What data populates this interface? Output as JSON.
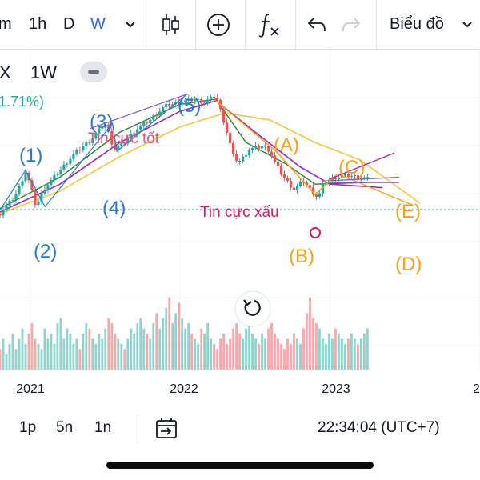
{
  "toolbar": {
    "interval_partial": "m",
    "interval_1h": "1h",
    "interval_d": "D",
    "interval_w": "W",
    "chart_label": "Biểu đồ",
    "icons": [
      "chevron-down-icon",
      "candlestick-icon",
      "add-circle-icon",
      "fx-icon",
      "undo-icon",
      "redo-icon"
    ]
  },
  "legend": {
    "symbol_fragment": "X",
    "timeframe": "1W",
    "change_fragment": "1.71%)"
  },
  "colors": {
    "up": "#26a69a",
    "down": "#ef5350",
    "wave_blue": "#2e78c4",
    "wave_orange": "#f6a21e",
    "annotation_pink": "#d81b60",
    "ma_yellow": "#f5c542",
    "ma_purple": "#9c27b0",
    "ma_green": "#2e7d32"
  },
  "chart_data": {
    "type": "candlestick",
    "annotations": {
      "wave_1": "(1)",
      "wave_2": "(2)",
      "wave_3": "(3)",
      "wave_4": "(4)",
      "wave_5": "(5)",
      "wave_A": "(A)",
      "wave_B": "(B)",
      "wave_C": "(C)",
      "wave_D": "(D)",
      "wave_E": "(E)",
      "good_news": "Tin cực tốt",
      "bad_news": "Tin cực xấu"
    },
    "x_ticks": [
      "2021",
      "2022",
      "2023",
      "2"
    ],
    "x_range": [
      2020.8,
      2024.0
    ],
    "y_range": [
      0,
      100
    ],
    "price_series": [
      [
        2020.8,
        23
      ],
      [
        2020.9,
        33
      ],
      [
        2020.97,
        47
      ],
      [
        2021.0,
        40
      ],
      [
        2021.04,
        27
      ],
      [
        2021.06,
        31
      ],
      [
        2021.1,
        38
      ],
      [
        2021.16,
        44
      ],
      [
        2021.24,
        52
      ],
      [
        2021.3,
        58
      ],
      [
        2021.4,
        65
      ],
      [
        2021.5,
        75
      ],
      [
        2021.52,
        71
      ],
      [
        2021.56,
        60
      ],
      [
        2021.62,
        63
      ],
      [
        2021.7,
        71
      ],
      [
        2021.8,
        77
      ],
      [
        2021.9,
        85
      ],
      [
        2022.0,
        87
      ],
      [
        2022.1,
        89
      ],
      [
        2022.16,
        87
      ],
      [
        2022.24,
        91
      ],
      [
        2022.3,
        74
      ],
      [
        2022.36,
        55
      ],
      [
        2022.4,
        53
      ],
      [
        2022.46,
        60
      ],
      [
        2022.56,
        62
      ],
      [
        2022.6,
        59
      ],
      [
        2022.64,
        51
      ],
      [
        2022.7,
        43
      ],
      [
        2022.76,
        37
      ],
      [
        2022.82,
        42
      ],
      [
        2022.88,
        36
      ],
      [
        2022.92,
        32
      ],
      [
        2022.96,
        41
      ],
      [
        2023.04,
        44
      ],
      [
        2023.12,
        45
      ],
      [
        2023.2,
        44
      ],
      [
        2023.25,
        43
      ]
    ],
    "ma_yellow": [
      [
        2020.8,
        23
      ],
      [
        2021.2,
        36
      ],
      [
        2021.6,
        56
      ],
      [
        2022.0,
        73
      ],
      [
        2022.3,
        81
      ],
      [
        2022.6,
        77
      ],
      [
        2022.9,
        64
      ],
      [
        2023.2,
        54
      ],
      [
        2023.6,
        29
      ]
    ],
    "ma_purple": [
      [
        2020.8,
        24
      ],
      [
        2021.2,
        40
      ],
      [
        2021.6,
        64
      ],
      [
        2022.0,
        82
      ],
      [
        2022.24,
        88
      ],
      [
        2022.5,
        70
      ],
      [
        2022.8,
        50
      ],
      [
        2023.0,
        40
      ],
      [
        2023.35,
        38
      ]
    ],
    "ma_green": [
      [
        2020.8,
        26
      ],
      [
        2021.2,
        44
      ],
      [
        2021.6,
        70
      ],
      [
        2022.0,
        86
      ],
      [
        2022.24,
        89
      ],
      [
        2022.44,
        64
      ],
      [
        2022.7,
        52
      ],
      [
        2022.9,
        40
      ],
      [
        2023.25,
        41
      ]
    ],
    "volume": [
      4,
      6,
      3,
      5,
      7,
      4,
      6,
      8,
      5,
      7,
      9,
      6,
      5,
      4,
      8,
      6,
      7,
      5,
      9,
      10,
      6,
      8,
      7,
      5,
      6,
      4,
      7,
      9,
      8,
      6,
      5,
      7,
      6,
      8,
      10,
      9,
      7,
      6,
      5,
      4,
      6,
      8,
      7,
      9,
      10,
      8,
      7,
      6,
      9,
      11,
      8,
      10,
      12,
      14,
      9,
      11,
      13,
      10,
      8,
      9,
      7,
      6,
      5,
      8,
      7,
      9,
      6,
      5,
      4,
      6,
      7,
      5,
      6,
      8,
      9,
      7,
      6,
      8,
      10,
      7,
      6,
      5,
      7,
      6,
      8,
      9,
      7,
      6,
      5,
      4,
      6,
      5,
      7,
      6,
      5,
      8,
      11,
      14,
      10,
      9,
      8,
      6,
      5,
      7,
      6,
      8,
      7,
      6,
      5,
      6,
      7,
      6,
      5,
      6,
      7,
      8
    ],
    "grid": true
  },
  "bottom": {
    "range_1p": "1p",
    "range_5n": "5n",
    "range_1n": "1n",
    "time": "22:34:04 (UTC+7)"
  }
}
